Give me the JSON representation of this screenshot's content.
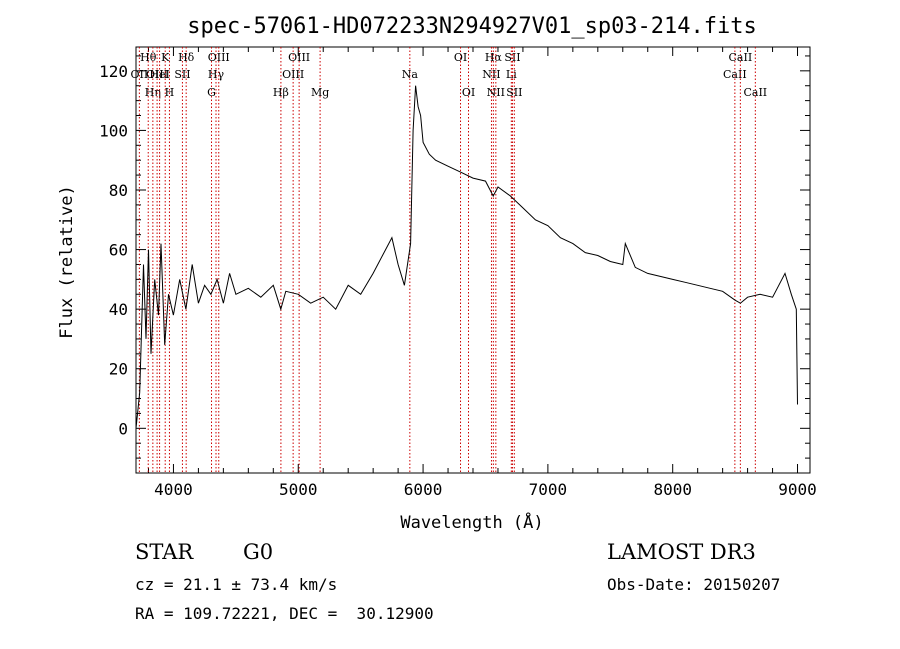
{
  "chart_data": {
    "type": "line",
    "title": "spec-57061-HD072233N294927V01_sp03-214.fits",
    "xlabel": "Wavelength (Å)",
    "ylabel": "Flux (relative)",
    "xlim": [
      3700,
      9100
    ],
    "ylim": [
      -15,
      128
    ],
    "grid": false,
    "x_ticks": [
      "4000",
      "5000",
      "6000",
      "7000",
      "8000",
      "9000"
    ],
    "y_ticks": [
      "0",
      "20",
      "40",
      "60",
      "80",
      "100",
      "120"
    ],
    "series": [
      {
        "color": "#000000",
        "x": [
          3700,
          3730,
          3760,
          3780,
          3800,
          3820,
          3850,
          3880,
          3900,
          3930,
          3960,
          4000,
          4050,
          4100,
          4150,
          4200,
          4250,
          4300,
          4350,
          4400,
          4450,
          4500,
          4600,
          4700,
          4800,
          4860,
          4900,
          5000,
          5100,
          5200,
          5300,
          5400,
          5500,
          5600,
          5700,
          5750,
          5800,
          5850,
          5900,
          5920,
          5940,
          5960,
          5980,
          6000,
          6050,
          6100,
          6200,
          6300,
          6400,
          6500,
          6562,
          6600,
          6700,
          6800,
          6900,
          7000,
          7100,
          7200,
          7300,
          7400,
          7500,
          7600,
          7620,
          7700,
          7800,
          7900,
          8000,
          8100,
          8200,
          8300,
          8400,
          8500,
          8542,
          8600,
          8700,
          8800,
          8850,
          8900,
          8950,
          8990,
          9000
        ],
        "y": [
          0,
          12,
          55,
          30,
          60,
          25,
          50,
          38,
          62,
          28,
          45,
          38,
          50,
          40,
          55,
          42,
          48,
          45,
          50,
          42,
          52,
          45,
          47,
          44,
          48,
          40,
          46,
          45,
          42,
          44,
          40,
          48,
          45,
          52,
          60,
          64,
          55,
          48,
          62,
          100,
          115,
          108,
          105,
          96,
          92,
          90,
          88,
          86,
          84,
          83,
          78,
          81,
          78,
          74,
          70,
          68,
          64,
          62,
          59,
          58,
          56,
          55,
          62,
          54,
          52,
          51,
          50,
          49,
          48,
          47,
          46,
          43,
          42,
          44,
          45,
          44,
          48,
          52,
          45,
          40,
          8
        ]
      }
    ],
    "lines": [
      {
        "x": 3727,
        "label": "OII",
        "row": 2
      },
      {
        "x": 3798,
        "label": "Hθ",
        "row": 1
      },
      {
        "x": 3835,
        "label": "Hη",
        "row": 3
      },
      {
        "x": 3869,
        "label": "OIII",
        "row": 2
      },
      {
        "x": 3889,
        "label": "HeI",
        "row": 2
      },
      {
        "x": 3934,
        "label": "K",
        "row": 1
      },
      {
        "x": 3968,
        "label": "H",
        "row": 3
      },
      {
        "x": 4072,
        "label": "SII",
        "row": 2
      },
      {
        "x": 4102,
        "label": "Hδ",
        "row": 1
      },
      {
        "x": 4305,
        "label": "G",
        "row": 3
      },
      {
        "x": 4341,
        "label": "Hγ",
        "row": 2
      },
      {
        "x": 4363,
        "label": "OIII",
        "row": 1
      },
      {
        "x": 4861,
        "label": "Hβ",
        "row": 3
      },
      {
        "x": 4959,
        "label": "OIII",
        "row": 2
      },
      {
        "x": 5007,
        "label": "OIII",
        "row": 1
      },
      {
        "x": 5175,
        "label": "Mg",
        "row": 3
      },
      {
        "x": 5894,
        "label": "Na",
        "row": 2
      },
      {
        "x": 6300,
        "label": "OI",
        "row": 1
      },
      {
        "x": 6364,
        "label": "OI",
        "row": 3
      },
      {
        "x": 6548,
        "label": "NII",
        "row": 2
      },
      {
        "x": 6563,
        "label": "Hα",
        "row": 1
      },
      {
        "x": 6583,
        "label": "NII",
        "row": 3
      },
      {
        "x": 6707,
        "label": "Li",
        "row": 2
      },
      {
        "x": 6716,
        "label": "SII",
        "row": 1
      },
      {
        "x": 6731,
        "label": "SII",
        "row": 3
      },
      {
        "x": 8498,
        "label": "CaII",
        "row": 2
      },
      {
        "x": 8542,
        "label": "CaII",
        "row": 1
      },
      {
        "x": 8662,
        "label": "CaII",
        "row": 3
      }
    ]
  },
  "footer": {
    "object_class": "STAR",
    "subclass": "G0",
    "survey": "LAMOST DR3",
    "cz": "cz = 21.1 ± 73.4 km/s",
    "obs_date": "Obs-Date: 20150207",
    "coords": "RA = 109.72221, DEC =  30.12900"
  }
}
